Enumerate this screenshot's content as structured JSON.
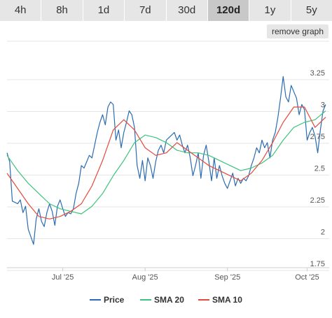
{
  "tabs": [
    {
      "label": "4h"
    },
    {
      "label": "8h"
    },
    {
      "label": "1d"
    },
    {
      "label": "7d"
    },
    {
      "label": "30d"
    },
    {
      "label": "120d"
    },
    {
      "label": "1y"
    },
    {
      "label": "5y"
    }
  ],
  "active_tab": "120d",
  "remove_graph_label": "remove graph",
  "chart_data": {
    "type": "line",
    "title": "",
    "xlabel": "",
    "ylabel": "",
    "ylim": [
      1.75,
      3.25
    ],
    "yticks": [
      1.75,
      2,
      2.25,
      2.5,
      2.75,
      3,
      3.25
    ],
    "ytick_labels": [
      "1.75",
      "2",
      "2.25",
      "2.5",
      "2.75",
      "3",
      "3.25"
    ],
    "x_range": [
      "2025-06-10",
      "2025-10-08"
    ],
    "xticks": [
      {
        "date": "2025-07-01",
        "label": "Jul '25"
      },
      {
        "date": "2025-08-01",
        "label": "Aug '25"
      },
      {
        "date": "2025-09-01",
        "label": "Sep '25"
      },
      {
        "date": "2025-10-01",
        "label": "Oct '25"
      }
    ],
    "grid": "horizontal",
    "legend_position": "bottom",
    "series": [
      {
        "name": "Price",
        "color": "#2b6cb0",
        "points": [
          [
            "2025-06-10",
            2.62
          ],
          [
            "2025-06-11",
            2.55
          ],
          [
            "2025-06-12",
            2.24
          ],
          [
            "2025-06-13",
            2.23
          ],
          [
            "2025-06-14",
            2.22
          ],
          [
            "2025-06-15",
            2.25
          ],
          [
            "2025-06-16",
            2.15
          ],
          [
            "2025-06-17",
            2.2
          ],
          [
            "2025-06-18",
            2.02
          ],
          [
            "2025-06-19",
            1.96
          ],
          [
            "2025-06-20",
            1.9
          ],
          [
            "2025-06-21",
            2.1
          ],
          [
            "2025-06-22",
            2.18
          ],
          [
            "2025-06-23",
            2.08
          ],
          [
            "2025-06-24",
            2.04
          ],
          [
            "2025-06-25",
            2.15
          ],
          [
            "2025-06-26",
            2.22
          ],
          [
            "2025-06-27",
            2.16
          ],
          [
            "2025-06-28",
            2.05
          ],
          [
            "2025-06-29",
            2.2
          ],
          [
            "2025-06-30",
            2.25
          ],
          [
            "2025-07-01",
            2.18
          ],
          [
            "2025-07-02",
            2.12
          ],
          [
            "2025-07-03",
            2.15
          ],
          [
            "2025-07-04",
            2.14
          ],
          [
            "2025-07-05",
            2.18
          ],
          [
            "2025-07-06",
            2.3
          ],
          [
            "2025-07-07",
            2.38
          ],
          [
            "2025-07-08",
            2.52
          ],
          [
            "2025-07-09",
            2.5
          ],
          [
            "2025-07-10",
            2.55
          ],
          [
            "2025-07-11",
            2.6
          ],
          [
            "2025-07-12",
            2.58
          ],
          [
            "2025-07-13",
            2.68
          ],
          [
            "2025-07-14",
            2.78
          ],
          [
            "2025-07-15",
            2.86
          ],
          [
            "2025-07-16",
            2.92
          ],
          [
            "2025-07-17",
            2.84
          ],
          [
            "2025-07-18",
            2.98
          ],
          [
            "2025-07-19",
            3.02
          ],
          [
            "2025-07-20",
            3.0
          ],
          [
            "2025-07-21",
            2.72
          ],
          [
            "2025-07-22",
            2.8
          ],
          [
            "2025-07-23",
            2.66
          ],
          [
            "2025-07-24",
            2.78
          ],
          [
            "2025-07-25",
            2.86
          ],
          [
            "2025-07-26",
            2.95
          ],
          [
            "2025-07-27",
            2.92
          ],
          [
            "2025-07-28",
            2.82
          ],
          [
            "2025-07-29",
            2.52
          ],
          [
            "2025-07-30",
            2.42
          ],
          [
            "2025-07-31",
            2.56
          ],
          [
            "2025-08-01",
            2.4
          ],
          [
            "2025-08-02",
            2.58
          ],
          [
            "2025-08-03",
            2.52
          ],
          [
            "2025-08-04",
            2.42
          ],
          [
            "2025-08-05",
            2.55
          ],
          [
            "2025-08-06",
            2.64
          ],
          [
            "2025-08-07",
            2.68
          ],
          [
            "2025-08-08",
            2.62
          ],
          [
            "2025-08-09",
            2.72
          ],
          [
            "2025-08-10",
            2.74
          ],
          [
            "2025-08-11",
            2.76
          ],
          [
            "2025-08-12",
            2.78
          ],
          [
            "2025-08-13",
            2.72
          ],
          [
            "2025-08-14",
            2.76
          ],
          [
            "2025-08-15",
            2.68
          ],
          [
            "2025-08-16",
            2.62
          ],
          [
            "2025-08-17",
            2.68
          ],
          [
            "2025-08-18",
            2.58
          ],
          [
            "2025-08-19",
            2.44
          ],
          [
            "2025-08-20",
            2.52
          ],
          [
            "2025-08-21",
            2.62
          ],
          [
            "2025-08-22",
            2.42
          ],
          [
            "2025-08-23",
            2.6
          ],
          [
            "2025-08-24",
            2.68
          ],
          [
            "2025-08-25",
            2.55
          ],
          [
            "2025-08-26",
            2.4
          ],
          [
            "2025-08-27",
            2.58
          ],
          [
            "2025-08-28",
            2.42
          ],
          [
            "2025-08-29",
            2.52
          ],
          [
            "2025-08-30",
            2.44
          ],
          [
            "2025-08-31",
            2.38
          ],
          [
            "2025-09-01",
            2.34
          ],
          [
            "2025-09-02",
            2.4
          ],
          [
            "2025-09-03",
            2.46
          ],
          [
            "2025-09-04",
            2.36
          ],
          [
            "2025-09-05",
            2.42
          ],
          [
            "2025-09-06",
            2.38
          ],
          [
            "2025-09-07",
            2.42
          ],
          [
            "2025-09-08",
            2.4
          ],
          [
            "2025-09-09",
            2.44
          ],
          [
            "2025-09-10",
            2.52
          ],
          [
            "2025-09-11",
            2.58
          ],
          [
            "2025-09-12",
            2.66
          ],
          [
            "2025-09-13",
            2.62
          ],
          [
            "2025-09-14",
            2.72
          ],
          [
            "2025-09-15",
            2.66
          ],
          [
            "2025-09-16",
            2.7
          ],
          [
            "2025-09-17",
            2.58
          ],
          [
            "2025-09-18",
            2.72
          ],
          [
            "2025-09-19",
            2.78
          ],
          [
            "2025-09-20",
            2.9
          ],
          [
            "2025-09-21",
            3.05
          ],
          [
            "2025-09-22",
            3.22
          ],
          [
            "2025-09-23",
            3.06
          ],
          [
            "2025-09-24",
            3.02
          ],
          [
            "2025-09-25",
            3.15
          ],
          [
            "2025-09-26",
            3.1
          ],
          [
            "2025-09-27",
            3.05
          ],
          [
            "2025-09-28",
            2.92
          ],
          [
            "2025-09-29",
            3.0
          ],
          [
            "2025-09-30",
            2.96
          ],
          [
            "2025-10-01",
            2.72
          ],
          [
            "2025-10-02",
            2.78
          ],
          [
            "2025-10-03",
            2.82
          ],
          [
            "2025-10-04",
            2.75
          ],
          [
            "2025-10-05",
            2.62
          ],
          [
            "2025-10-06",
            2.8
          ],
          [
            "2025-10-07",
            2.95
          ],
          [
            "2025-10-08",
            3.0
          ]
        ]
      },
      {
        "name": "SMA 20",
        "color": "#3cc47c",
        "points": [
          [
            "2025-06-10",
            2.6
          ],
          [
            "2025-06-14",
            2.48
          ],
          [
            "2025-06-18",
            2.38
          ],
          [
            "2025-06-22",
            2.3
          ],
          [
            "2025-06-26",
            2.22
          ],
          [
            "2025-06-30",
            2.18
          ],
          [
            "2025-07-04",
            2.16
          ],
          [
            "2025-07-08",
            2.14
          ],
          [
            "2025-07-12",
            2.2
          ],
          [
            "2025-07-16",
            2.3
          ],
          [
            "2025-07-20",
            2.44
          ],
          [
            "2025-07-24",
            2.56
          ],
          [
            "2025-07-28",
            2.7
          ],
          [
            "2025-08-01",
            2.76
          ],
          [
            "2025-08-05",
            2.74
          ],
          [
            "2025-08-09",
            2.7
          ],
          [
            "2025-08-13",
            2.64
          ],
          [
            "2025-08-17",
            2.62
          ],
          [
            "2025-08-21",
            2.62
          ],
          [
            "2025-08-25",
            2.6
          ],
          [
            "2025-08-29",
            2.56
          ],
          [
            "2025-09-02",
            2.52
          ],
          [
            "2025-09-06",
            2.48
          ],
          [
            "2025-09-10",
            2.5
          ],
          [
            "2025-09-14",
            2.54
          ],
          [
            "2025-09-18",
            2.6
          ],
          [
            "2025-09-22",
            2.72
          ],
          [
            "2025-09-26",
            2.82
          ],
          [
            "2025-09-30",
            2.86
          ],
          [
            "2025-10-04",
            2.88
          ],
          [
            "2025-10-08",
            2.95
          ]
        ]
      },
      {
        "name": "SMA 10",
        "color": "#e24a3b",
        "points": [
          [
            "2025-06-10",
            2.46
          ],
          [
            "2025-06-14",
            2.34
          ],
          [
            "2025-06-18",
            2.22
          ],
          [
            "2025-06-22",
            2.12
          ],
          [
            "2025-06-26",
            2.1
          ],
          [
            "2025-06-30",
            2.12
          ],
          [
            "2025-07-04",
            2.16
          ],
          [
            "2025-07-08",
            2.22
          ],
          [
            "2025-07-12",
            2.36
          ],
          [
            "2025-07-16",
            2.56
          ],
          [
            "2025-07-20",
            2.8
          ],
          [
            "2025-07-24",
            2.88
          ],
          [
            "2025-07-28",
            2.8
          ],
          [
            "2025-08-01",
            2.66
          ],
          [
            "2025-08-05",
            2.6
          ],
          [
            "2025-08-09",
            2.62
          ],
          [
            "2025-08-13",
            2.7
          ],
          [
            "2025-08-17",
            2.64
          ],
          [
            "2025-08-21",
            2.58
          ],
          [
            "2025-08-25",
            2.52
          ],
          [
            "2025-08-29",
            2.48
          ],
          [
            "2025-09-02",
            2.44
          ],
          [
            "2025-09-06",
            2.4
          ],
          [
            "2025-09-10",
            2.46
          ],
          [
            "2025-09-14",
            2.56
          ],
          [
            "2025-09-18",
            2.7
          ],
          [
            "2025-09-22",
            2.86
          ],
          [
            "2025-09-26",
            2.98
          ],
          [
            "2025-09-30",
            2.98
          ],
          [
            "2025-10-04",
            2.82
          ],
          [
            "2025-10-08",
            2.9
          ]
        ]
      }
    ]
  }
}
